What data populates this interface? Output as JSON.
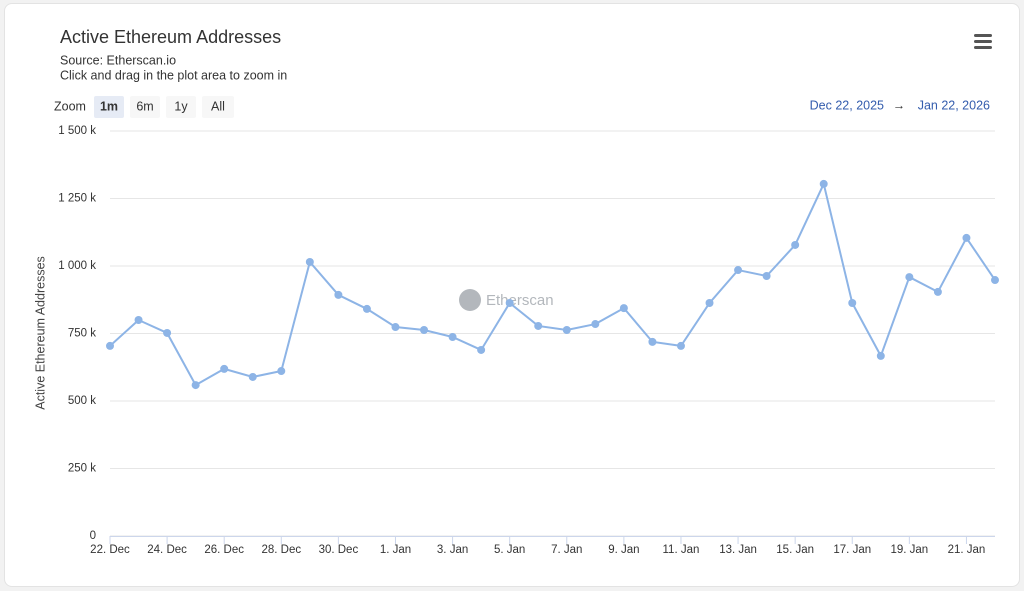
{
  "chart_data": {
    "type": "line",
    "title": "Active Ethereum Addresses",
    "subtitle": "Source: Etherscan.io",
    "caption": "Click and drag in the plot area to zoom in",
    "zoom": {
      "label": "Zoom",
      "buttons": [
        "1m",
        "6m",
        "1y",
        "All"
      ],
      "selected": "1m"
    },
    "range": {
      "from": "Dec 22, 2025",
      "arrow": "→",
      "to": "Jan 22, 2026"
    },
    "watermark": "Etherscan",
    "y_label": "Active Ethereum Addresses",
    "categories": [
      "22. Dec",
      null,
      "24. Dec",
      null,
      "26. Dec",
      null,
      "28. Dec",
      null,
      "30. Dec",
      null,
      "1. Jan",
      null,
      "3. Jan",
      null,
      "5. Jan",
      null,
      "7. Jan",
      null,
      "9. Jan",
      null,
      "11. Jan",
      null,
      "13. Jan",
      null,
      "15. Jan",
      null,
      "17. Jan",
      null,
      "19. Jan",
      null,
      "21. Jan",
      null
    ],
    "series": [
      {
        "name": "Active Ethereum Addresses",
        "color": "#8db4e6",
        "values": [
          704000,
          800000,
          752000,
          559000,
          619000,
          589000,
          611000,
          1015000,
          893000,
          841000,
          774000,
          763000,
          737000,
          689000,
          863000,
          778000,
          763000,
          785000,
          844000,
          719000,
          704000,
          863000,
          985000,
          963000,
          1078000,
          1304000,
          863000,
          667000,
          959000,
          904000,
          1104000,
          948000
        ]
      }
    ],
    "ylim": [
      0,
      1500000
    ],
    "yticks": [
      0,
      {
        "value": 250000,
        "label": "250 k"
      },
      {
        "value": 500000,
        "label": "500 k"
      },
      {
        "value": 750000,
        "label": "750 k"
      },
      {
        "value": 1000000,
        "label": "1 000 k"
      },
      {
        "value": 1250000,
        "label": "1 250 k"
      },
      {
        "value": 1500000,
        "label": "1 500 k"
      }
    ],
    "grid": true
  }
}
